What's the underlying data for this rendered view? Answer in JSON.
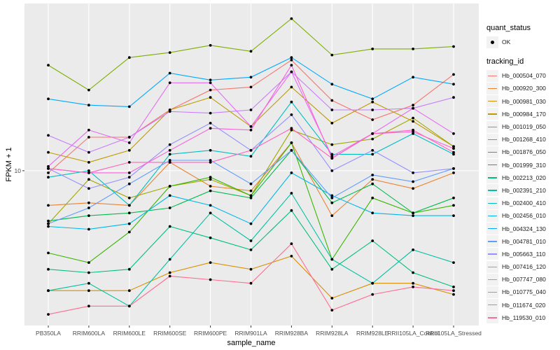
{
  "chart_data": {
    "type": "line",
    "title": "",
    "xlabel": "sample_name",
    "ylabel": "FPKM + 1",
    "y_scale": "log10",
    "ylim": [
      4.84,
      21.9
    ],
    "y_ticks": [
      10
    ],
    "y_tick_labels": [
      "10"
    ],
    "grid": true,
    "legend_position": "right",
    "x": [
      "PB350LA",
      "RRIM600LA",
      "RRIM600LE",
      "RRIM600SE",
      "RRIM600PE",
      "RRIM901LA",
      "RRIM928BA",
      "RRIM928LA",
      "RRIM928LE",
      "RRII105LA_Control",
      "RRII105LA_Stressed"
    ],
    "series": [
      {
        "name": "Hb_000504_070",
        "color": "#F8766D",
        "values": [
          9.9,
          11.7,
          11.7,
          13.3,
          14.6,
          14.8,
          16.8,
          13.9,
          12.7,
          13.6,
          15.7
        ]
      },
      {
        "name": "Hb_000920_300",
        "color": "#EA8331",
        "values": [
          8.5,
          8.6,
          8.5,
          10.4,
          9.3,
          9.1,
          11.4,
          8.1,
          9.6,
          9.2,
          9.9
        ]
      },
      {
        "name": "Hb_000981_030",
        "color": "#D89000",
        "values": [
          5.7,
          5.7,
          5.7,
          6.2,
          6.5,
          6.3,
          6.7,
          5.5,
          5.9,
          5.9,
          5.6
        ]
      },
      {
        "name": "Hb_000984_170",
        "color": "#C09B00",
        "values": [
          10.9,
          10.4,
          11.0,
          13.3,
          14.1,
          12.3,
          14.8,
          12.5,
          13.8,
          12.6,
          11.2
        ]
      },
      {
        "name": "Hb_001019_050",
        "color": "#A3A500",
        "values": [
          7.8,
          9.6,
          8.8,
          9.3,
          9.6,
          8.9,
          12.1,
          11.3,
          11.6,
          12.8,
          11.2
        ]
      },
      {
        "name": "Hb_001268_410",
        "color": "#7CAE00",
        "values": [
          16.4,
          14.6,
          17.0,
          17.4,
          18.0,
          17.5,
          20.4,
          17.2,
          17.7,
          17.7,
          17.9
        ]
      },
      {
        "name": "Hb_001876_050",
        "color": "#39B600",
        "values": [
          6.8,
          6.5,
          7.5,
          9.3,
          9.7,
          8.9,
          11.4,
          6.6,
          8.8,
          8.2,
          8.5
        ]
      },
      {
        "name": "Hb_001999_310",
        "color": "#00BB4E",
        "values": [
          7.9,
          8.1,
          8.2,
          8.4,
          9.1,
          8.8,
          11.0,
          8.6,
          9.4,
          8.2,
          8.8
        ]
      },
      {
        "name": "Hb_002213_020",
        "color": "#00BF7D",
        "values": [
          6.3,
          6.2,
          6.3,
          7.7,
          7.3,
          6.9,
          8.3,
          6.3,
          7.2,
          6.2,
          5.8
        ]
      },
      {
        "name": "Hb_002391_210",
        "color": "#00C1A3",
        "values": [
          5.7,
          5.9,
          5.3,
          6.6,
          8.2,
          7.2,
          9.0,
          6.6,
          5.9,
          6.9,
          6.5
        ]
      },
      {
        "name": "Hb_002400_410",
        "color": "#00BFC4",
        "values": [
          9.7,
          10.0,
          8.5,
          10.8,
          11.0,
          10.7,
          13.8,
          10.8,
          10.8,
          11.9,
          10.8
        ]
      },
      {
        "name": "Hb_002456_010",
        "color": "#00B8E7",
        "values": [
          7.7,
          7.6,
          7.8,
          8.9,
          8.5,
          7.8,
          9.9,
          8.9,
          8.2,
          8.1,
          8.1
        ]
      },
      {
        "name": "Hb_004324_130",
        "color": "#00A9FF",
        "values": [
          14.0,
          13.6,
          13.5,
          15.8,
          15.3,
          15.5,
          17.0,
          15.0,
          14.0,
          15.5,
          15.0
        ]
      },
      {
        "name": "Hb_004781_010",
        "color": "#619CFF",
        "values": [
          7.8,
          8.4,
          9.4,
          10.5,
          10.5,
          9.4,
          11.0,
          8.8,
          9.8,
          9.5,
          10.1
        ]
      },
      {
        "name": "Hb_005663_110",
        "color": "#9590FF",
        "values": [
          10.1,
          9.2,
          9.7,
          11.3,
          12.5,
          11.0,
          13.0,
          10.0,
          11.0,
          9.9,
          10.1
        ]
      },
      {
        "name": "Hb_007416_120",
        "color": "#C77CFF",
        "values": [
          11.8,
          10.9,
          11.7,
          13.2,
          13.1,
          13.3,
          15.9,
          13.3,
          13.3,
          13.4,
          14.1
        ]
      },
      {
        "name": "Hb_007747_080",
        "color": "#E76BF3",
        "values": [
          10.2,
          12.1,
          11.4,
          15.1,
          15.1,
          12.3,
          15.9,
          10.7,
          11.9,
          13.4,
          11.9
        ]
      },
      {
        "name": "Hb_010775_040",
        "color": "#FA62DB",
        "values": [
          10.1,
          9.9,
          9.9,
          11.0,
          12.2,
          12.1,
          16.4,
          10.6,
          11.9,
          12.0,
          11.1
        ]
      },
      {
        "name": "Hb_011674_020",
        "color": "#FF62BC",
        "values": [
          10.1,
          9.9,
          10.4,
          10.4,
          10.4,
          11.0,
          12.2,
          10.6,
          11.9,
          12.1,
          10.9
        ]
      },
      {
        "name": "Hb_119530_010",
        "color": "#FF6C91",
        "values": [
          5.1,
          5.3,
          5.3,
          6.1,
          6.0,
          5.9,
          7.1,
          5.2,
          5.6,
          5.8,
          5.7
        ]
      }
    ]
  },
  "legend": {
    "quant_status_title": "quant_status",
    "quant_status_item": "OK",
    "tracking_id_title": "tracking_id"
  },
  "style": {
    "panel_bg": "#EBEBEB",
    "grid_color": "#FFFFFF",
    "point_color": "#000000"
  }
}
